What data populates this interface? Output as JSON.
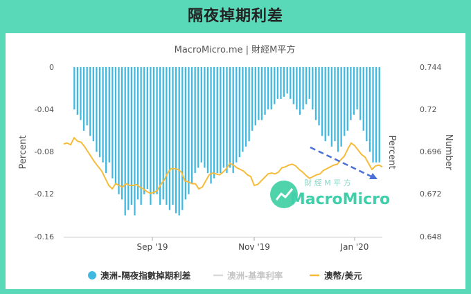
{
  "header": {
    "title": "隔夜掉期利差"
  },
  "chart_data": {
    "type": "bar-line",
    "source": "MacroMicro.me | 財經M平方",
    "x_labels": [
      "Sep '19",
      "Nov '19",
      "Jan '20"
    ],
    "y_left": {
      "label": "Percent",
      "ticks": [
        "0",
        "-0.04",
        "-0.08",
        "-0.12",
        "-0.16"
      ],
      "range": [
        -0.16,
        0
      ]
    },
    "y_right": {
      "label": "Number",
      "ticks": [
        "0.744",
        "0.72",
        "0.696",
        "0.672",
        "0.648"
      ],
      "range": [
        0.648,
        0.744
      ]
    },
    "right_inner_label": "Percent",
    "series": [
      {
        "name": "澳洲-隔夜指數掉期利差",
        "type": "bar",
        "color": "#41b8e0",
        "values": [
          -0.04,
          -0.045,
          -0.05,
          -0.06,
          -0.055,
          -0.065,
          -0.07,
          -0.08,
          -0.085,
          -0.09,
          -0.1,
          -0.09,
          -0.105,
          -0.11,
          -0.12,
          -0.125,
          -0.14,
          -0.135,
          -0.13,
          -0.14,
          -0.125,
          -0.13,
          -0.12,
          -0.115,
          -0.13,
          -0.12,
          -0.12,
          -0.13,
          -0.125,
          -0.13,
          -0.135,
          -0.13,
          -0.138,
          -0.14,
          -0.135,
          -0.125,
          -0.12,
          -0.11,
          -0.1,
          -0.095,
          -0.09,
          -0.095,
          -0.1,
          -0.11,
          -0.105,
          -0.1,
          -0.1,
          -0.095,
          -0.1,
          -0.095,
          -0.1,
          -0.09,
          -0.085,
          -0.08,
          -0.075,
          -0.07,
          -0.06,
          -0.055,
          -0.05,
          -0.05,
          -0.045,
          -0.04,
          -0.04,
          -0.035,
          -0.03,
          -0.03,
          -0.028,
          -0.025,
          -0.03,
          -0.035,
          -0.04,
          -0.045,
          -0.04,
          -0.035,
          -0.03,
          -0.04,
          -0.05,
          -0.055,
          -0.065,
          -0.07,
          -0.065,
          -0.075,
          -0.07,
          -0.08,
          -0.075,
          -0.065,
          -0.06,
          -0.05,
          -0.045,
          -0.04,
          -0.05,
          -0.06,
          -0.07,
          -0.08,
          -0.09,
          -0.09,
          -0.09
        ]
      },
      {
        "name": "澳洲-基準利率",
        "type": "line",
        "color": "#d9d9d9",
        "values": []
      },
      {
        "name": "澳幣/美元",
        "type": "line",
        "color": "#f6bb3b",
        "values": [
          0.7005,
          0.701,
          0.7,
          0.704,
          0.702,
          0.7015,
          0.699,
          0.696,
          0.693,
          0.69,
          0.6875,
          0.685,
          0.681,
          0.677,
          0.675,
          0.678,
          0.677,
          0.676,
          0.678,
          0.677,
          0.677,
          0.6775,
          0.676,
          0.675,
          0.6735,
          0.6725,
          0.673,
          0.674,
          0.6775,
          0.68,
          0.684,
          0.6865,
          0.6865,
          0.686,
          0.6845,
          0.6795,
          0.679,
          0.678,
          0.678,
          0.675,
          0.676,
          0.6795,
          0.683,
          0.684,
          0.6835,
          0.683,
          0.6845,
          0.6865,
          0.6895,
          0.6885,
          0.687,
          0.686,
          0.685,
          0.683,
          0.682,
          0.677,
          0.6775,
          0.6795,
          0.6815,
          0.6835,
          0.684,
          0.6835,
          0.6845,
          0.687,
          0.6875,
          0.6885,
          0.689,
          0.688,
          0.686,
          0.6845,
          0.6825,
          0.681,
          0.682,
          0.683,
          0.6835,
          0.6855,
          0.6865,
          0.6875,
          0.6885,
          0.689,
          0.6915,
          0.6935,
          0.6975,
          0.701,
          0.6995,
          0.697,
          0.6945,
          0.693,
          0.6895,
          0.686,
          0.688,
          0.6885,
          0.6875
        ]
      }
    ],
    "grid": false,
    "legend_position": "bottom"
  },
  "watermark": {
    "cn": "財 經 M 平 方",
    "en": "MacroMicro"
  }
}
